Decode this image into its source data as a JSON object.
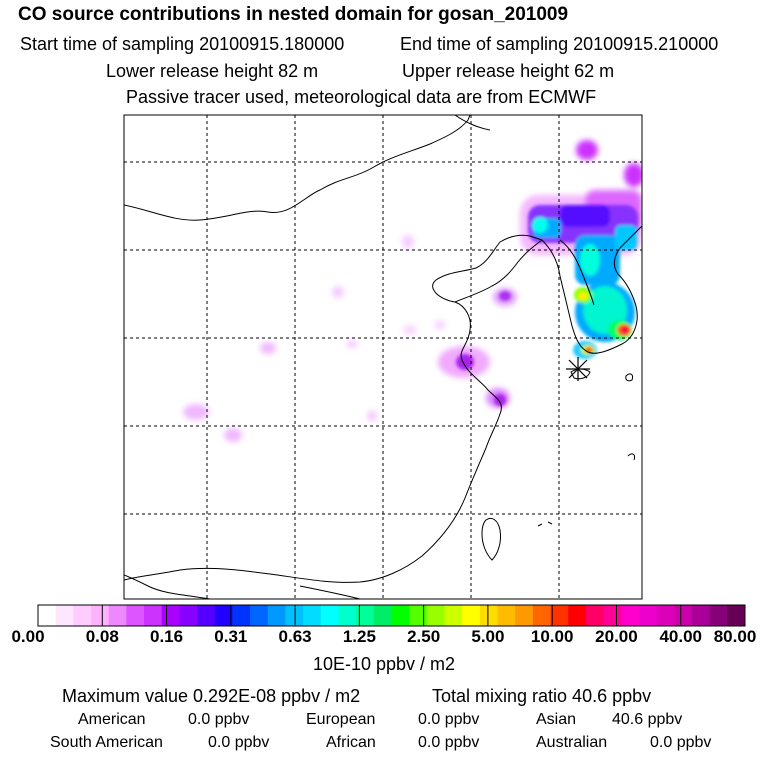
{
  "header": {
    "title": "CO  source contributions in nested domain for gosan_201009",
    "start_time": "Start time of sampling 20100915.180000",
    "end_time": "End time of sampling 20100915.210000",
    "lower_release": "Lower release height   82 m",
    "upper_release": "Upper release height   62 m",
    "note": "Passive tracer used, meteorological data are from ECMWF"
  },
  "legend": {
    "ticks": [
      "0.00",
      "0.08",
      "0.16",
      "0.31",
      "0.63",
      "1.25",
      "2.50",
      "5.00",
      "10.00",
      "20.00",
      "40.00",
      "80.00"
    ],
    "colors": [
      "#ffffff",
      "#ffe6ff",
      "#ffccff",
      "#ffb3ff",
      "#ee88ff",
      "#dd55ff",
      "#cc33ff",
      "#aa00ff",
      "#8800ff",
      "#5500ff",
      "#2200ff",
      "#0033ff",
      "#0066ff",
      "#0099ff",
      "#00c0ff",
      "#00ddff",
      "#00ffff",
      "#00ffcc",
      "#00ff99",
      "#00ee66",
      "#00ff00",
      "#55ff00",
      "#99ff00",
      "#ccff00",
      "#ffff00",
      "#ffdd00",
      "#ffbb00",
      "#ff9900",
      "#ff6600",
      "#ff3300",
      "#ff0000",
      "#ff0066",
      "#ff0099",
      "#ff00cc",
      "#ee00cc",
      "#dd00bb",
      "#cc00aa",
      "#aa0099",
      "#880077",
      "#660055"
    ],
    "unit": "10E-10 ppbv / m2"
  },
  "summary": {
    "maximum": "Maximum value  0.292E-08 ppbv / m2",
    "total": "Total mixing ratio       40.6 ppbv"
  },
  "regions": [
    {
      "name": "American",
      "value": "0.0 ppbv"
    },
    {
      "name": "European",
      "value": "0.0 ppbv"
    },
    {
      "name": "Asian",
      "value": "40.6 ppbv"
    },
    {
      "name": "South American",
      "value": "0.0 ppbv"
    },
    {
      "name": "African",
      "value": "0.0 ppbv"
    },
    {
      "name": "Australian",
      "value": "0.0 ppbv"
    }
  ]
}
